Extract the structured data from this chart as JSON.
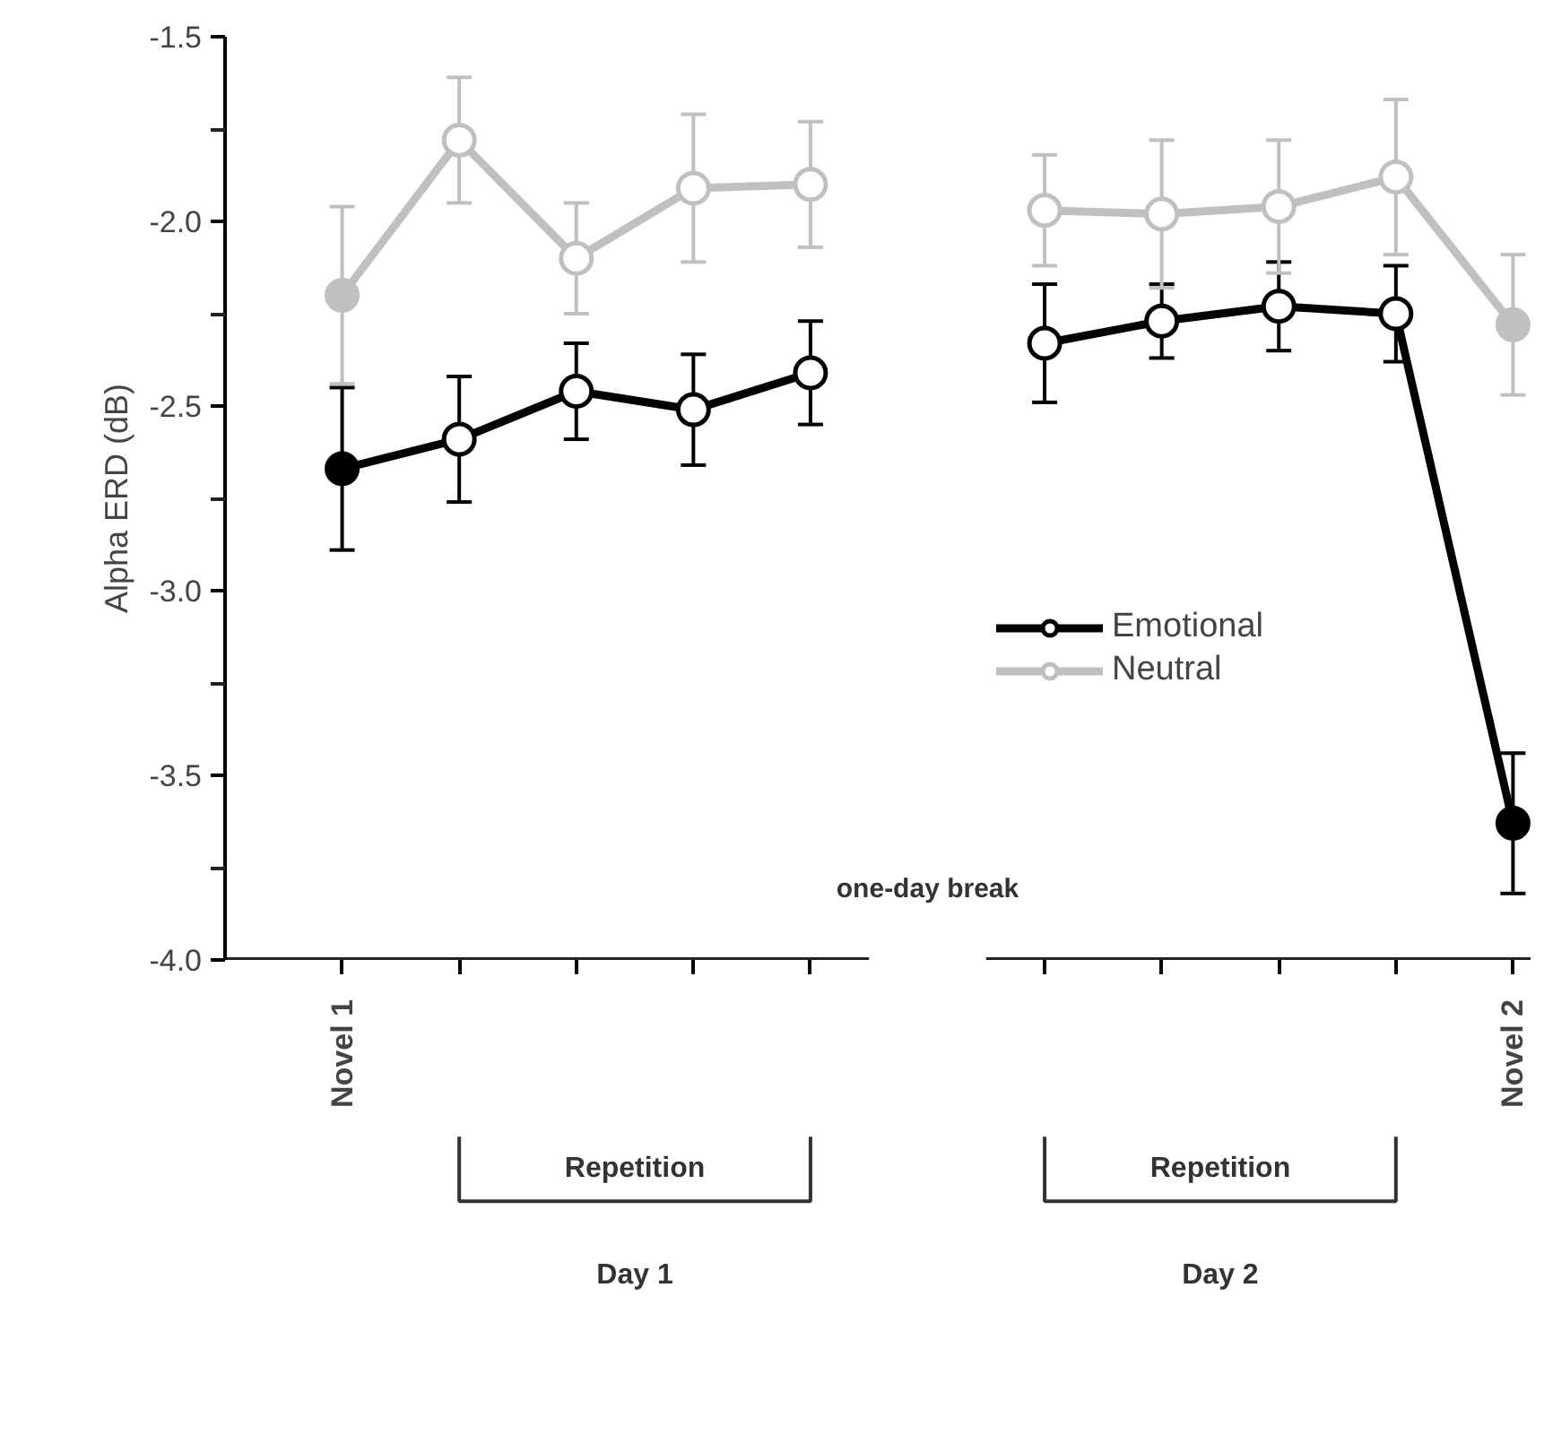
{
  "chart_data": {
    "type": "line",
    "ylabel": "Alpha ERD (dB)",
    "categories": [
      "Novel 1",
      null,
      null,
      null,
      null,
      null,
      null,
      null,
      null,
      null,
      "Novel 2"
    ],
    "ylim": [
      -4.0,
      -1.5
    ],
    "yticks": [
      {
        "value": -4.0,
        "label": "-4.0"
      },
      {
        "value": -3.5,
        "label": "-3.5"
      },
      {
        "value": -3.0,
        "label": "-3.0"
      },
      {
        "value": -2.5,
        "label": "-2.5"
      },
      {
        "value": -2.0,
        "label": "-2.0"
      },
      {
        "value": -1.5,
        "label": "-1.5"
      }
    ],
    "series": [
      {
        "name": "Emotional",
        "color": "#000000",
        "colors": [
          "#000000",
          "#ffffff",
          "#ffffff",
          "#ffffff",
          "#ffffff",
          null,
          "#ffffff",
          "#ffffff",
          "#ffffff",
          "#ffffff",
          "#000000"
        ],
        "values": [
          -2.67,
          -2.59,
          -2.46,
          -2.51,
          -2.41,
          null,
          -2.33,
          -2.27,
          -2.23,
          -2.25,
          -3.63
        ],
        "errors": [
          0.22,
          0.17,
          0.13,
          0.15,
          0.14,
          null,
          0.16,
          0.1,
          0.12,
          0.13,
          0.19
        ]
      },
      {
        "name": "Neutral",
        "color": "#c0c0c0",
        "colors": [
          "#c0c0c0",
          "#ffffff",
          "#ffffff",
          "#ffffff",
          "#ffffff",
          null,
          "#ffffff",
          "#ffffff",
          "#ffffff",
          "#ffffff",
          "#c0c0c0"
        ],
        "values": [
          -2.2,
          -1.78,
          -2.1,
          -1.91,
          -1.9,
          null,
          -1.97,
          -1.98,
          -1.96,
          -1.88,
          -2.28
        ],
        "errors": [
          0.24,
          0.17,
          0.15,
          0.2,
          0.17,
          null,
          0.15,
          0.2,
          0.18,
          0.21,
          0.19
        ]
      }
    ],
    "annotations": [
      "one-day break",
      "Repetition",
      "Repetition",
      "Day 1",
      "Day 2"
    ],
    "marker": "circle",
    "legend": "right"
  }
}
